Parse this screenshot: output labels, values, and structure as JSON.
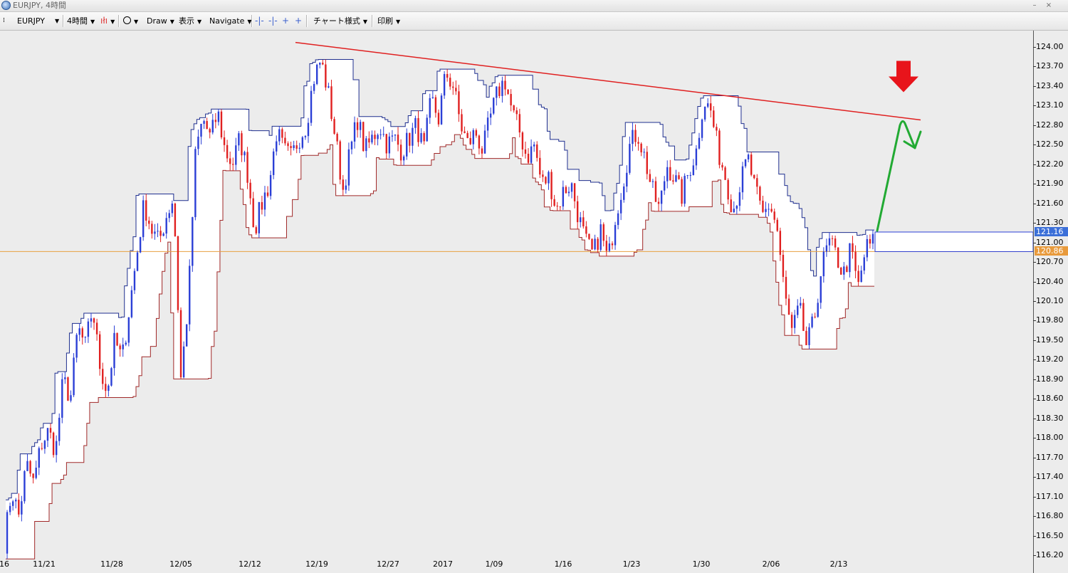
{
  "window": {
    "title": "EURJPY, 4時間",
    "controls": [
      "–",
      "×"
    ]
  },
  "toolbar": {
    "symbol": "EURJPY",
    "timeframe": "4時間",
    "draw": "Draw",
    "display": "表示",
    "navigate": "Navigate",
    "chart_style": "チャート様式",
    "print": "印刷"
  },
  "chart_data": {
    "type": "candlestick",
    "symbol": "EURJPY",
    "timeframe": "4時間",
    "y_ticks": [
      "124.00",
      "123.70",
      "123.40",
      "123.10",
      "122.80",
      "122.50",
      "122.20",
      "121.90",
      "121.60",
      "121.30",
      "121.00",
      "120.70",
      "120.40",
      "120.10",
      "119.80",
      "119.50",
      "119.20",
      "118.90",
      "118.60",
      "118.30",
      "118.00",
      "117.70",
      "117.40",
      "117.10",
      "116.80",
      "116.50",
      "116.20"
    ],
    "ylim": [
      116.12,
      124.16
    ],
    "x_ticks": [
      "16",
      "11/21",
      "11/28",
      "12/05",
      "12/12",
      "12/19",
      "12/27",
      "2017",
      "1/09",
      "1/16",
      "1/23",
      "1/30",
      "2/06",
      "2/13"
    ],
    "colors": {
      "up": "#2b3fd6",
      "down": "#e02020",
      "channel_high": "#1f2f8f",
      "channel_low": "#a02828",
      "trendline": "#e02020",
      "annotation_arrow": "#e8141b",
      "forecast_path": "#22aa33",
      "price_line": "#e8a040"
    },
    "price_labels": [
      {
        "text": "121.16",
        "value": 121.16,
        "color": "#3b6fd8"
      },
      {
        "text": "120.86",
        "value": 120.86,
        "color": "#e89a3c"
      }
    ],
    "trendline": {
      "from_value": 124.07,
      "to_value": 122.88
    },
    "price_path": [
      116.4,
      117.2,
      116.8,
      117.6,
      117.3,
      117.9,
      118.1,
      117.8,
      118.9,
      118.6,
      119.7,
      119.4,
      120.0,
      119.1,
      118.7,
      119.5,
      119.2,
      120.0,
      120.8,
      121.6,
      121.2,
      121.0,
      121.4,
      121.7,
      118.9,
      120.1,
      122.4,
      122.9,
      122.6,
      123.0,
      122.4,
      122.2,
      122.6,
      122.1,
      121.2,
      121.6,
      121.9,
      122.7,
      122.4,
      122.3,
      122.6,
      122.8,
      123.5,
      123.8,
      123.3,
      122.6,
      121.8,
      122.4,
      122.9,
      122.4,
      122.6,
      122.8,
      122.5,
      122.6,
      122.4,
      122.6,
      122.8,
      122.4,
      123.2,
      122.9,
      123.6,
      123.4,
      122.8,
      122.5,
      122.7,
      122.4,
      122.9,
      123.3,
      123.5,
      123.0,
      122.7,
      122.3,
      122.5,
      121.9,
      122.0,
      121.5,
      121.8,
      121.9,
      121.4,
      121.0,
      120.8,
      121.2,
      120.7,
      121.4,
      121.9,
      122.5,
      122.7,
      122.3,
      121.8,
      121.5,
      122.2,
      122.0,
      121.7,
      122.1,
      122.4,
      123.2,
      123.0,
      122.4,
      122.0,
      121.5,
      121.9,
      122.3,
      121.8,
      121.4,
      121.6,
      121.2,
      120.2,
      119.6,
      120.0,
      119.4,
      119.8,
      120.6,
      121.0,
      120.8,
      120.5,
      120.9,
      120.3,
      120.9,
      121.0
    ]
  }
}
